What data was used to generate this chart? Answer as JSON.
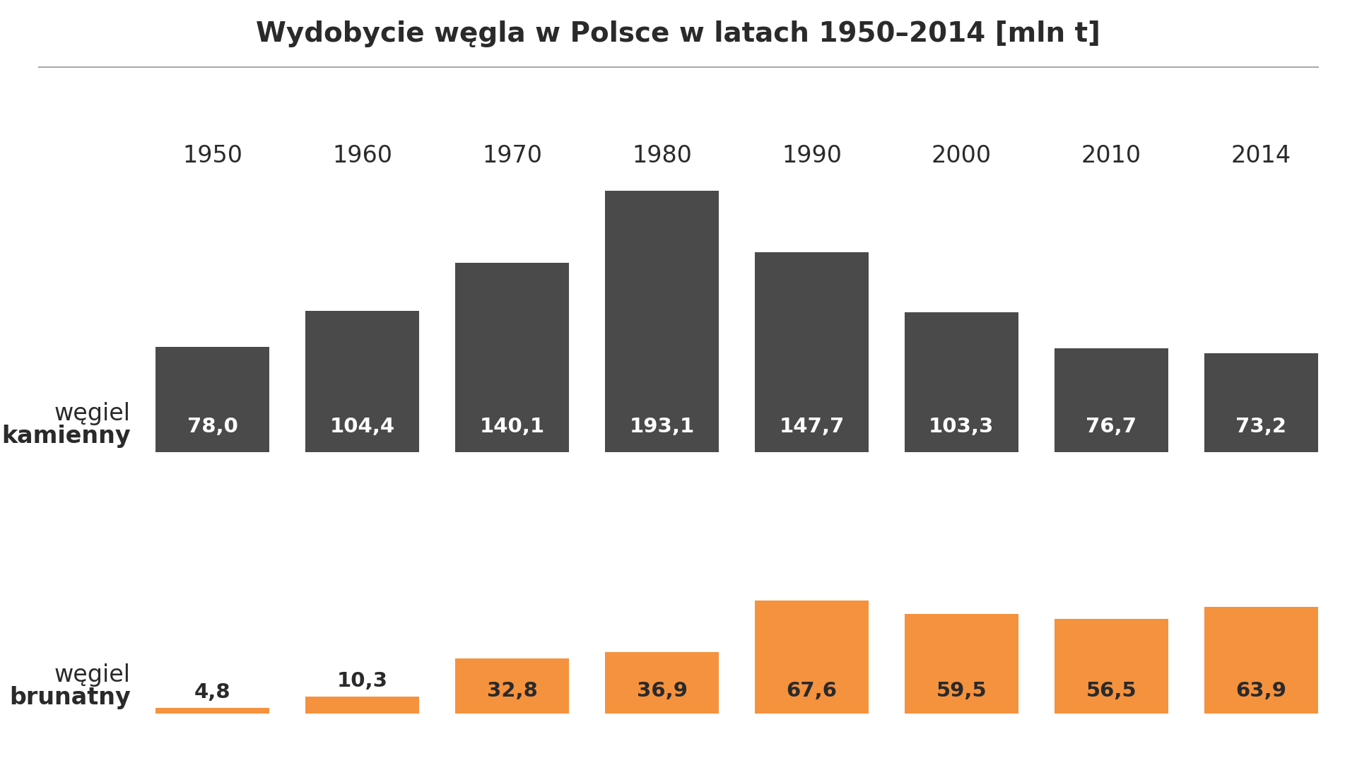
{
  "title": "Wydobycie węgla w Polsce w latach 1950–2014 [mln t]",
  "years": [
    "1950",
    "1960",
    "1970",
    "1980",
    "1990",
    "2000",
    "2010",
    "2014"
  ],
  "coal_hard": [
    78.0,
    104.4,
    140.1,
    193.1,
    147.7,
    103.3,
    76.7,
    73.2
  ],
  "coal_brown": [
    4.8,
    10.3,
    32.8,
    36.9,
    67.6,
    59.5,
    56.5,
    63.9
  ],
  "hard_color": "#4a4a4a",
  "brown_color": "#f5923e",
  "hard_label_line1": "węgiel",
  "hard_label_line2": "kamienny",
  "brown_label_line1": "węgiel",
  "brown_label_line2": "brunatny",
  "title_fontsize": 28,
  "year_fontsize": 24,
  "bar_value_fontsize": 21,
  "label_fontsize": 24,
  "background_color": "#ffffff",
  "text_color": "#2a2a2a",
  "white": "#ffffff"
}
